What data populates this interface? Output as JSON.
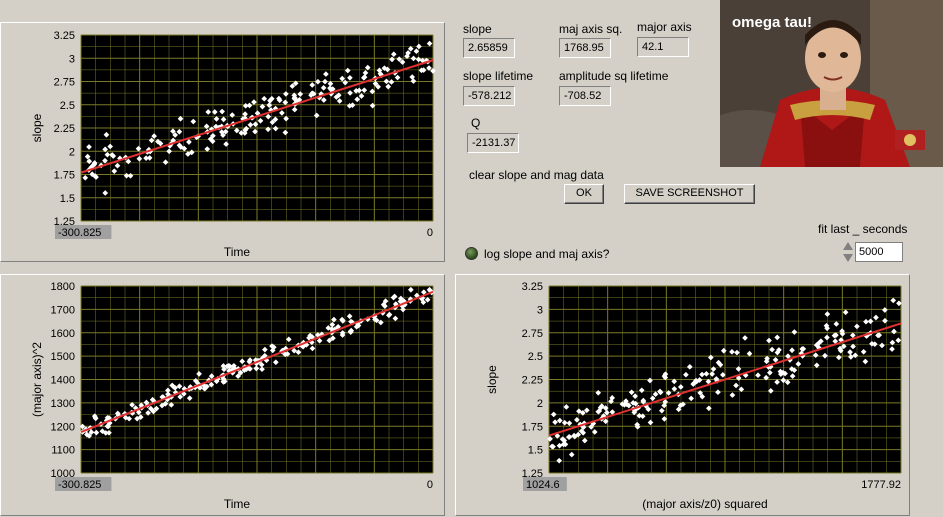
{
  "indicators": {
    "slope_label": "slope",
    "slope_value": "2.65859",
    "maj_axis_sq_label": "maj axis sq.",
    "maj_axis_sq_value": "1768.95",
    "major_axis_label": "major axis",
    "major_axis_value": "42.1",
    "slope_lifetime_label": "slope lifetime",
    "slope_lifetime_value": "-578.212",
    "amplitude_sq_lifetime_label": "amplitude sq lifetime",
    "amplitude_sq_lifetime_value": "-708.52",
    "q_label": "Q",
    "q_value": "-2131.37"
  },
  "controls": {
    "clear_label": "clear slope and mag data",
    "ok_button": "OK",
    "save_button": "SAVE SCREENSHOT",
    "log_label": "log slope and maj axis?",
    "fit_label": "fit last _ seconds",
    "fit_value": "5000"
  },
  "photo": {
    "caption": "omega tau!"
  },
  "chart_data": [
    {
      "type": "scatter",
      "xlabel": "Time",
      "ylabel": "slope",
      "xlim": [
        -300.825,
        0
      ],
      "ylim": [
        1.25,
        3.25
      ],
      "x_ticks": [
        "-300.825",
        "0"
      ],
      "y_ticks": [
        "1.25",
        "1.5",
        "1.75",
        "2",
        "2.25",
        "2.5",
        "2.75",
        "3",
        "3.25"
      ],
      "fit": {
        "x": [
          -300.825,
          0
        ],
        "y": [
          1.77,
          2.98
        ]
      },
      "points": {
        "n": 200,
        "noise": 0.14,
        "seed": 11
      },
      "colors": {
        "point": "#ffffff",
        "fit": "#e03030",
        "bg": "#000000",
        "grid": "#7a7a28"
      }
    },
    {
      "type": "scatter",
      "xlabel": "Time",
      "ylabel": "(major axis)^2",
      "xlim": [
        -300.825,
        0
      ],
      "ylim": [
        1000,
        1800
      ],
      "x_ticks": [
        "-300.825",
        "0"
      ],
      "y_ticks": [
        "1000",
        "1100",
        "1200",
        "1300",
        "1400",
        "1500",
        "1600",
        "1700",
        "1800"
      ],
      "fit": {
        "x": [
          -300.825,
          0
        ],
        "y": [
          1175,
          1775
        ]
      },
      "points": {
        "n": 210,
        "noise": 28,
        "seed": 23
      },
      "colors": {
        "point": "#ffffff",
        "fit": "#e03030",
        "bg": "#000000",
        "grid": "#7a7a28"
      }
    },
    {
      "type": "scatter",
      "xlabel": "(major axis/z0) squared",
      "ylabel": "slope",
      "xlim": [
        1024.6,
        1777.92
      ],
      "ylim": [
        1.25,
        3.25
      ],
      "x_ticks": [
        "1024.6",
        "1777.92"
      ],
      "y_ticks": [
        "1.25",
        "1.5",
        "1.75",
        "2",
        "2.25",
        "2.5",
        "2.75",
        "3",
        "3.25"
      ],
      "fit": {
        "x": [
          1024.6,
          1777.92
        ],
        "y": [
          1.65,
          2.85
        ]
      },
      "points": {
        "n": 210,
        "noise": 0.17,
        "seed": 37
      },
      "colors": {
        "point": "#ffffff",
        "fit": "#e03030",
        "bg": "#000000",
        "grid": "#7a7a28"
      }
    }
  ]
}
